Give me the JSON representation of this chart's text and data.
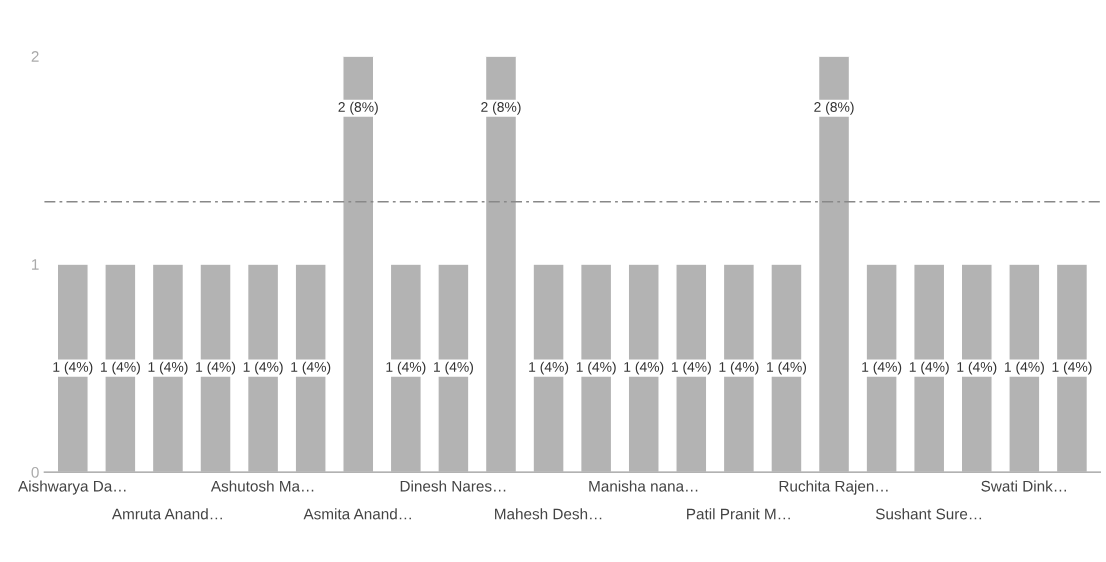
{
  "chart_data": {
    "type": "bar",
    "categories": [
      "Aishwarya Da…",
      null,
      "Amruta Anand…",
      null,
      "Ashutosh Ma…",
      null,
      "Asmita Anand…",
      null,
      "Dinesh Nares…",
      null,
      "Mahesh Desh…",
      null,
      "Manisha nana…",
      null,
      "Patil Pranit M…",
      null,
      "Ruchita Rajen…",
      null,
      "Sushant Sure…",
      null,
      "Swati Dink…",
      null
    ],
    "values": [
      1,
      1,
      1,
      1,
      1,
      1,
      2,
      1,
      1,
      2,
      1,
      1,
      1,
      1,
      1,
      1,
      2,
      1,
      1,
      1,
      1,
      1
    ],
    "value_labels": [
      "1 (4%)",
      "1 (4%)",
      "1 (4%)",
      "1 (4%)",
      "1 (4%)",
      "1 (4%)",
      "2 (8%)",
      "1 (4%)",
      "1 (4%)",
      "2 (8%)",
      "1 (4%)",
      "1 (4%)",
      "1 (4%)",
      "1 (4%)",
      "1 (4%)",
      "1 (4%)",
      "2 (8%)",
      "1 (4%)",
      "1 (4%)",
      "1 (4%)",
      "1 (4%)",
      "1 (4%)"
    ],
    "color": "#b3b3b3",
    "ylim": [
      0,
      2
    ],
    "yticks": [
      0,
      1,
      2
    ],
    "ref_lines": [
      {
        "axis": "y",
        "value": 1.3,
        "color": "#888888",
        "line_style": "dashed"
      }
    ],
    "grid": false
  }
}
